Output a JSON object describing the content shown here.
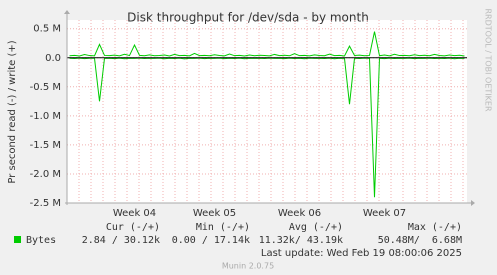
{
  "chart_data": {
    "type": "line",
    "title": "Disk throughput for /dev/sda - by month",
    "y_label": "Pr second read (-) / write (+)",
    "watermark": "RRDTOOL / TOBI OETIKER",
    "ylim": [
      -2500000,
      650000
    ],
    "yticks": [
      {
        "value": 500000,
        "label": "0.5 M"
      },
      {
        "value": 0,
        "label": "0.0"
      },
      {
        "value": -500000,
        "label": "-0.5 M"
      },
      {
        "value": -1000000,
        "label": "-1.0 M"
      },
      {
        "value": -1500000,
        "label": "-1.5 M"
      },
      {
        "value": -2000000,
        "label": "-2.0 M"
      },
      {
        "value": -2500000,
        "label": "-2.5 M"
      }
    ],
    "grid": true,
    "categories": [
      null,
      null,
      null,
      null,
      null,
      null,
      null,
      null,
      null,
      null,
      null,
      null,
      null,
      "Week 04",
      null,
      null,
      null,
      null,
      null,
      null,
      null,
      null,
      null,
      null,
      null,
      null,
      null,
      null,
      null,
      "Week 05",
      null,
      null,
      null,
      null,
      null,
      null,
      null,
      null,
      null,
      null,
      null,
      null,
      null,
      null,
      null,
      null,
      "Week 06",
      null,
      null,
      null,
      null,
      null,
      null,
      null,
      null,
      null,
      null,
      null,
      null,
      null,
      null,
      null,
      null,
      "Week 07",
      null,
      null,
      null,
      null,
      null,
      null,
      null,
      null,
      null,
      null,
      null,
      null,
      null,
      null,
      null,
      null
    ],
    "series": [
      {
        "name": "Bytes",
        "color": "#00cc00",
        "values": [
          35000,
          42000,
          30000,
          55000,
          38000,
          33000,
          230000,
          40000,
          36000,
          45000,
          32000,
          60000,
          38000,
          220000,
          41000,
          35000,
          50000,
          34000,
          39000,
          47000,
          31000,
          58000,
          36000,
          42000,
          33000,
          75000,
          37000,
          40000,
          34000,
          52000,
          38000,
          33000,
          65000,
          36000,
          41000,
          30000,
          48000,
          35000,
          44000,
          39000,
          32000,
          57000,
          37000,
          43000,
          34000,
          70000,
          36000,
          40000,
          33000,
          50000,
          38000,
          35000,
          62000,
          37000,
          42000,
          31000,
          200000,
          39000,
          45000,
          34000,
          40000,
          450000,
          36000,
          48000,
          33000,
          60000,
          38000,
          41000,
          35000,
          52000,
          37000,
          44000,
          34000,
          58000,
          39000,
          32000,
          47000,
          36000,
          43000,
          30000
        ],
        "read_values": [
          -8000,
          -12000,
          -6000,
          -15000,
          -9000,
          -7000,
          -750000,
          -10000,
          -8000,
          -14000,
          -6000,
          -18000,
          -9000,
          -11000,
          -7000,
          -13000,
          -8000,
          -10000,
          -6000,
          -16000,
          -9000,
          -12000,
          -7000,
          -20000,
          -8000,
          -11000,
          -6000,
          -14000,
          -9000,
          -10000,
          -7000,
          -15000,
          -8000,
          -12000,
          -6000,
          -17000,
          -9000,
          -10000,
          -8000,
          -13000,
          -6000,
          -11000,
          -9000,
          -14000,
          -7000,
          -12000,
          -8000,
          -16000,
          -6000,
          -10000,
          -9000,
          -13000,
          -7000,
          -18000,
          -8000,
          -11000,
          -800000,
          -9000,
          -12000,
          -7000,
          -10000,
          -2400000,
          -8000,
          -14000,
          -6000,
          -12000,
          -9000,
          -11000,
          -7000,
          -15000,
          -8000,
          -10000,
          -6000,
          -13000,
          -9000,
          -12000,
          -7000,
          -16000,
          -8000,
          -10000
        ]
      }
    ],
    "legend": {
      "headers": [
        "Cur (-/+)",
        "Min (-/+)",
        "Avg (-/+)",
        "Max (-/+)"
      ],
      "rows": [
        {
          "label": "Bytes",
          "cells": [
            "2.84 / 30.12k",
            "0.00 / 17.14k",
            "11.32k/ 43.19k",
            "50.48M/  6.68M"
          ]
        }
      ]
    },
    "last_update": "Last update: Wed Feb 19 08:00:06 2025",
    "footer": "Munin 2.0.75"
  }
}
